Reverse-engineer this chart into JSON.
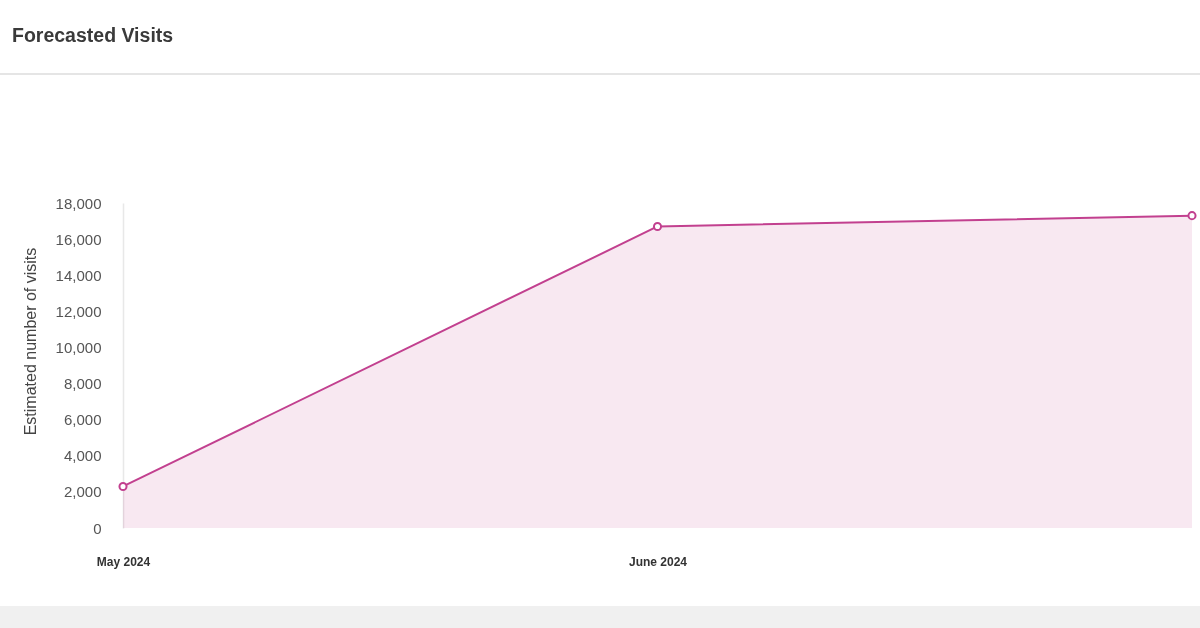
{
  "chart_data": {
    "type": "area",
    "title": "Forecasted Visits",
    "ylabel": "Estimated number of visits",
    "categories": [
      "May 2024",
      "June 2024",
      null
    ],
    "series": [
      {
        "color": "#c2408f",
        "values": [
          2300,
          16700,
          17300
        ]
      }
    ],
    "ylim": [
      0,
      18000
    ],
    "yticks": [
      0,
      {
        "value": 2000,
        "label": "2,000"
      },
      {
        "value": 4000,
        "label": "4,000"
      },
      {
        "value": 6000,
        "label": "6,000"
      },
      {
        "value": 8000,
        "label": "8,000"
      },
      {
        "value": 10000,
        "label": "10,000"
      },
      {
        "value": 12000,
        "label": "12,000"
      },
      {
        "value": 14000,
        "label": "14,000"
      },
      {
        "value": 16000,
        "label": "16,000"
      },
      {
        "value": 18000,
        "label": "18,000"
      }
    ],
    "grid": false,
    "marker": "circle"
  }
}
